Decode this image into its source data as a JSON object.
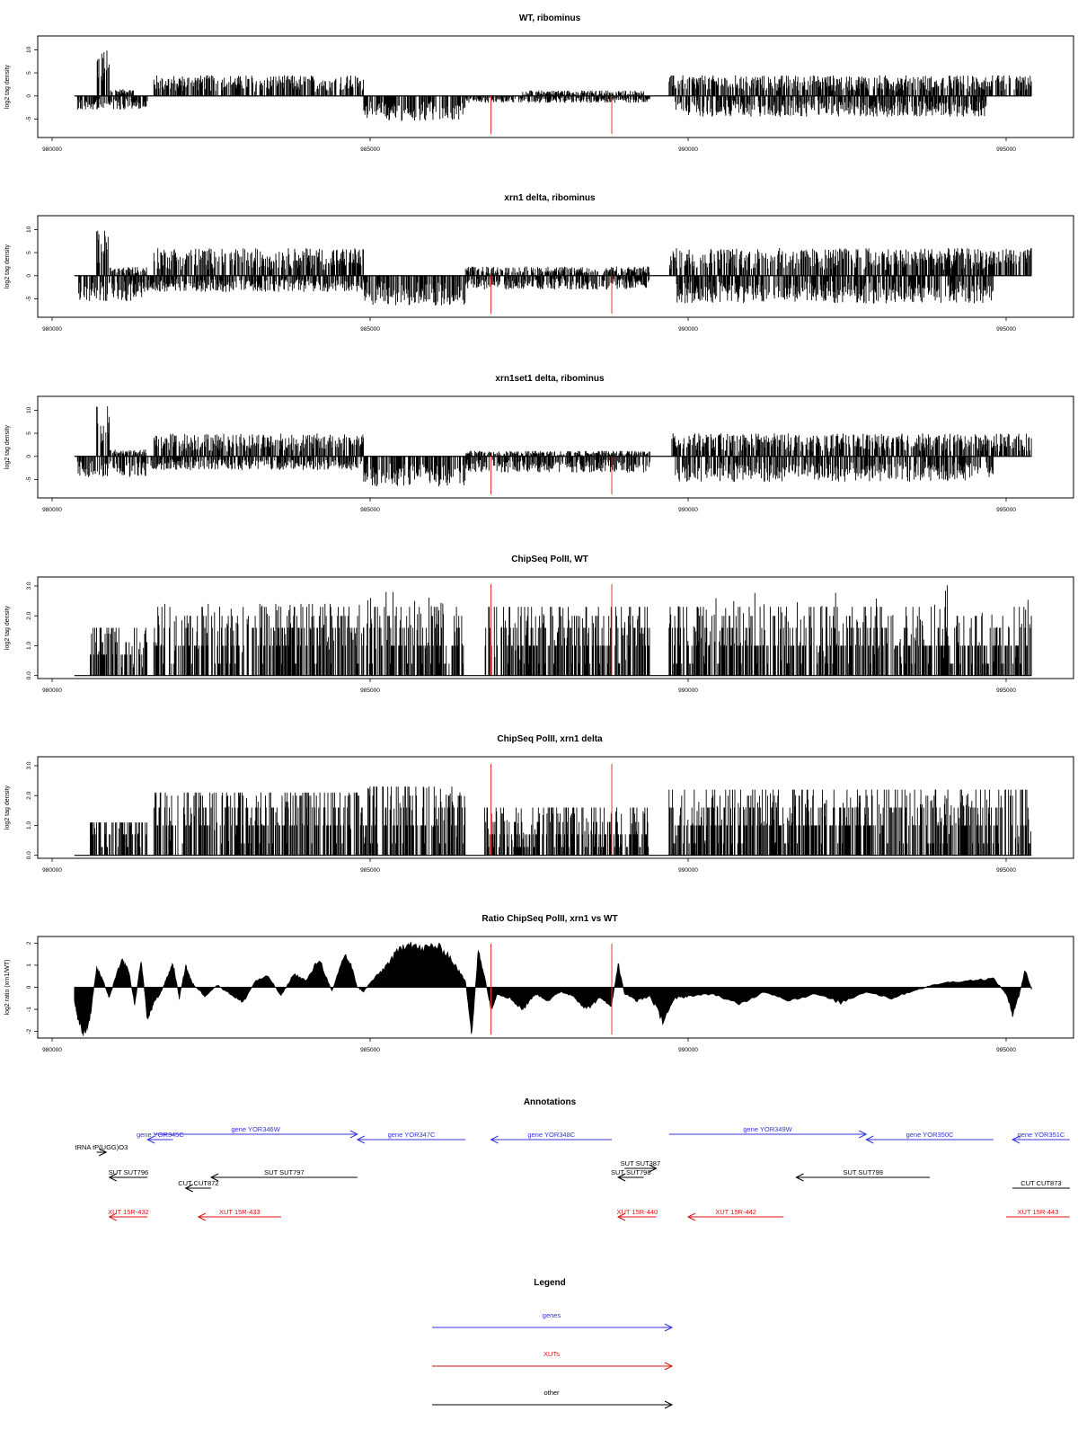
{
  "colors": {
    "gene": "#3333dd",
    "xut": "#dd1111",
    "other": "#000000",
    "marker": "#ee3333"
  },
  "chart_data": [
    {
      "type": "bar",
      "title": "WT, ribominus",
      "ylabel": "log2 tag density",
      "xlim": [
        980000,
        996000
      ],
      "ylim": [
        -9,
        13
      ],
      "x_ticks": [
        980000,
        985000,
        990000,
        995000
      ],
      "y_ticks": [
        -5,
        0,
        5,
        10
      ],
      "markers": [
        986900,
        988800
      ],
      "profile": {
        "pos": [
          {
            "range": [
              980700,
              980900
            ],
            "amp": 10
          },
          {
            "range": [
              980900,
              981300
            ],
            "amp": 1.5
          },
          {
            "range": [
              981600,
              984900
            ],
            "amp": 4.5
          },
          {
            "range": [
              987400,
              989300
            ],
            "amp": 1.2
          },
          {
            "range": [
              989700,
              995400
            ],
            "amp": 4.5
          }
        ],
        "neg": [
          {
            "range": [
              980400,
              981500
            ],
            "amp": -3
          },
          {
            "range": [
              984900,
              986500
            ],
            "amp": -5.5
          },
          {
            "range": [
              986500,
              987300
            ],
            "amp": -1.5
          },
          {
            "range": [
              987300,
              989400
            ],
            "amp": -1.5
          },
          {
            "range": [
              989800,
              994700
            ],
            "amp": -4.5
          }
        ]
      }
    },
    {
      "type": "bar",
      "title": "xrn1 delta, ribominus",
      "ylabel": "log2 tag density",
      "xlim": [
        980000,
        996000
      ],
      "ylim": [
        -9,
        13
      ],
      "x_ticks": [
        980000,
        985000,
        990000,
        995000
      ],
      "y_ticks": [
        -5,
        0,
        5,
        10
      ],
      "markers": [
        986900,
        988800
      ],
      "profile": {
        "pos": [
          {
            "range": [
              980700,
              980900
            ],
            "amp": 10
          },
          {
            "range": [
              980900,
              981500
            ],
            "amp": 2
          },
          {
            "range": [
              981600,
              984900
            ],
            "amp": 6
          },
          {
            "range": [
              986500,
              989400
            ],
            "amp": 2
          },
          {
            "range": [
              989700,
              995400
            ],
            "amp": 6
          }
        ],
        "neg": [
          {
            "range": [
              980400,
              981500
            ],
            "amp": -5.5
          },
          {
            "range": [
              981500,
              984900
            ],
            "amp": -3.5
          },
          {
            "range": [
              984900,
              986500
            ],
            "amp": -6.5
          },
          {
            "range": [
              986500,
              989400
            ],
            "amp": -3
          },
          {
            "range": [
              989800,
              994800
            ],
            "amp": -6
          }
        ]
      }
    },
    {
      "type": "bar",
      "title": "xrn1set1 delta, ribominus",
      "ylabel": "log2 tag density",
      "xlim": [
        980000,
        996000
      ],
      "ylim": [
        -9,
        13
      ],
      "x_ticks": [
        980000,
        985000,
        990000,
        995000
      ],
      "y_ticks": [
        -5,
        0,
        5,
        10
      ],
      "markers": [
        986900,
        988800
      ],
      "profile": {
        "pos": [
          {
            "range": [
              980700,
              980900
            ],
            "amp": 11
          },
          {
            "range": [
              980900,
              981500
            ],
            "amp": 1.5
          },
          {
            "range": [
              981600,
              984900
            ],
            "amp": 5
          },
          {
            "range": [
              986500,
              989400
            ],
            "amp": 1.2
          },
          {
            "range": [
              989700,
              995400
            ],
            "amp": 5
          }
        ],
        "neg": [
          {
            "range": [
              980400,
              981500
            ],
            "amp": -4.5
          },
          {
            "range": [
              981500,
              984900
            ],
            "amp": -3
          },
          {
            "range": [
              984900,
              986500
            ],
            "amp": -6.5
          },
          {
            "range": [
              986500,
              989400
            ],
            "amp": -3.5
          },
          {
            "range": [
              989800,
              994800
            ],
            "amp": -5.5
          }
        ]
      }
    },
    {
      "type": "bar",
      "title": "ChipSeq PolII, WT",
      "ylabel": "log2 tag density",
      "xlim": [
        980000,
        996000
      ],
      "ylim": [
        -0.1,
        3.3
      ],
      "x_ticks": [
        980000,
        985000,
        990000,
        995000
      ],
      "y_ticks": [
        0.0,
        1.0,
        2.0,
        3.0
      ],
      "y_tick_labels": [
        "0.0",
        "1.0",
        "2.0",
        "3.0"
      ],
      "markers": [
        986900,
        988800
      ],
      "profile": {
        "pos": [
          {
            "range": [
              980600,
              981500
            ],
            "amp": 1.6
          },
          {
            "range": [
              981600,
              984900
            ],
            "amp": 2.4
          },
          {
            "range": [
              984900,
              986500
            ],
            "amp": 2.8
          },
          {
            "range": [
              986800,
              989400
            ],
            "amp": 2.3
          },
          {
            "range": [
              989700,
              995400
            ],
            "amp": 3.1
          }
        ],
        "neg": []
      }
    },
    {
      "type": "bar",
      "title": "ChipSeq PolII, xrn1 delta",
      "ylabel": "log2 tag density",
      "xlim": [
        980000,
        996000
      ],
      "ylim": [
        -0.1,
        3.3
      ],
      "x_ticks": [
        980000,
        985000,
        990000,
        995000
      ],
      "y_ticks": [
        0.0,
        1.0,
        2.0,
        3.0
      ],
      "y_tick_labels": [
        "0.0",
        "1.0",
        "2.0",
        "3.0"
      ],
      "markers": [
        986900,
        988800
      ],
      "profile": {
        "pos": [
          {
            "range": [
              980600,
              981500
            ],
            "amp": 1.1
          },
          {
            "range": [
              981600,
              984900
            ],
            "amp": 2.1
          },
          {
            "range": [
              984900,
              986500
            ],
            "amp": 2.3
          },
          {
            "range": [
              986800,
              989400
            ],
            "amp": 1.6
          },
          {
            "range": [
              989700,
              995400
            ],
            "amp": 2.2
          }
        ],
        "neg": []
      }
    },
    {
      "type": "area",
      "title": "Ratio ChipSeq PolII, xrn1 vs WT",
      "ylabel": "log2 ratio (xrn1/WT)",
      "xlim": [
        980000,
        996000
      ],
      "ylim": [
        -2.3,
        2.3
      ],
      "x_ticks": [
        980000,
        985000,
        990000,
        995000
      ],
      "y_ticks": [
        -2,
        -1,
        0,
        1,
        2
      ],
      "markers": [
        986900,
        988800
      ],
      "x": [
        980350,
        980400,
        980500,
        980600,
        980700,
        980800,
        980900,
        981000,
        981100,
        981200,
        981300,
        981400,
        981500,
        981600,
        981700,
        981800,
        981900,
        982000,
        982100,
        982200,
        982400,
        982600,
        982800,
        983000,
        983200,
        983400,
        983600,
        983800,
        984000,
        984200,
        984400,
        984600,
        984700,
        984800,
        984900,
        985000,
        985200,
        985400,
        985600,
        985800,
        986000,
        986200,
        986400,
        986500,
        986600,
        986700,
        986800,
        986900,
        987000,
        987200,
        987400,
        987600,
        987800,
        988000,
        988200,
        988400,
        988600,
        988800,
        988900,
        989000,
        989200,
        989400,
        989600,
        989800,
        990000,
        990400,
        990800,
        991200,
        991600,
        992000,
        992400,
        992800,
        993200,
        993600,
        994000,
        994400,
        994800,
        995000,
        995100,
        995200,
        995300,
        995400
      ],
      "y": [
        -0.6,
        -1.3,
        -2.2,
        -1.3,
        0.9,
        0.3,
        -0.5,
        0.5,
        1.2,
        0.8,
        -0.8,
        1.3,
        -1.5,
        -0.7,
        -0.3,
        0.4,
        1.1,
        -0.5,
        1.0,
        0.2,
        -0.4,
        0.1,
        -0.3,
        -0.7,
        0.3,
        0.5,
        -0.4,
        0.6,
        0.3,
        1.3,
        -0.2,
        1.5,
        1.0,
        0.0,
        -0.2,
        0.2,
        0.8,
        1.5,
        2.1,
        1.7,
        1.9,
        1.6,
        0.7,
        0.3,
        -2.2,
        1.7,
        0.5,
        -1.0,
        -0.3,
        -0.5,
        -1.0,
        -0.3,
        -0.6,
        -0.2,
        -0.4,
        -1.0,
        -0.5,
        -0.8,
        1.1,
        -0.3,
        -0.6,
        -0.4,
        -1.5,
        -0.5,
        -0.4,
        -0.3,
        -0.8,
        -0.2,
        -0.6,
        -0.3,
        -0.7,
        -0.2,
        -0.5,
        -0.1,
        0.2,
        0.3,
        0.4,
        -0.3,
        -1.2,
        -0.4,
        0.8,
        -0.1
      ]
    }
  ],
  "annotations": {
    "title": "Annotations",
    "features": [
      {
        "label": "gene YOR345C",
        "class": "gene",
        "start": 981500,
        "end": 981900,
        "dir": "left",
        "row": 2
      },
      {
        "label": "gene YOR346W",
        "class": "gene",
        "start": 981600,
        "end": 984800,
        "dir": "right",
        "row": 1
      },
      {
        "label": "gene YOR347C",
        "class": "gene",
        "start": 984800,
        "end": 986500,
        "dir": "left",
        "row": 2
      },
      {
        "label": "gene YOR348C",
        "class": "gene",
        "start": 986900,
        "end": 988800,
        "dir": "left",
        "row": 2
      },
      {
        "label": "gene YOR349W",
        "class": "gene",
        "start": 989700,
        "end": 992800,
        "dir": "right",
        "row": 1
      },
      {
        "label": "gene YOR350C",
        "class": "gene",
        "start": 992800,
        "end": 994800,
        "dir": "left",
        "row": 2
      },
      {
        "label": "gene YOR351C",
        "class": "gene",
        "start": 995100,
        "end": 996000,
        "dir": "left",
        "row": 2
      },
      {
        "label": "tRNA tP(UGG)O3",
        "class": "other",
        "start": 980700,
        "end": 980850,
        "dir": "right",
        "row": 3
      },
      {
        "label": "SUT SUT796",
        "class": "other",
        "start": 980900,
        "end": 981500,
        "dir": "left",
        "row": 5
      },
      {
        "label": "SUT SUT797",
        "class": "other",
        "start": 982500,
        "end": 984800,
        "dir": "left",
        "row": 5
      },
      {
        "label": "SUT SUT387",
        "class": "other",
        "start": 989000,
        "end": 989500,
        "dir": "right",
        "row": 4
      },
      {
        "label": "SUT SUT798",
        "class": "other",
        "start": 988900,
        "end": 989300,
        "dir": "left",
        "row": 5
      },
      {
        "label": "SUT SUT799",
        "class": "other",
        "start": 991700,
        "end": 993800,
        "dir": "left",
        "row": 5
      },
      {
        "label": "CUT CUT872",
        "class": "other",
        "start": 982100,
        "end": 982500,
        "dir": "left",
        "row": 6
      },
      {
        "label": "CUT CUT873",
        "class": "other",
        "start": 995100,
        "end": 996000,
        "dir": "none",
        "row": 6
      },
      {
        "label": "XUT 15R-432",
        "class": "xut",
        "start": 980900,
        "end": 981500,
        "dir": "left",
        "row": 7
      },
      {
        "label": "XUT 15R-433",
        "class": "xut",
        "start": 982300,
        "end": 983600,
        "dir": "left",
        "row": 7
      },
      {
        "label": "XUT 15R-440",
        "class": "xut",
        "start": 988900,
        "end": 989500,
        "dir": "left",
        "row": 7
      },
      {
        "label": "XUT 15R-442",
        "class": "xut",
        "start": 990000,
        "end": 991500,
        "dir": "left",
        "row": 7
      },
      {
        "label": "XUT 15R-443",
        "class": "xut",
        "start": 995000,
        "end": 996000,
        "dir": "none",
        "row": 7
      }
    ]
  },
  "legend": {
    "title": "Legend",
    "items": [
      {
        "label": "genes",
        "class": "gene"
      },
      {
        "label": "XUTs",
        "class": "xut"
      },
      {
        "label": "other",
        "class": "other"
      }
    ]
  }
}
